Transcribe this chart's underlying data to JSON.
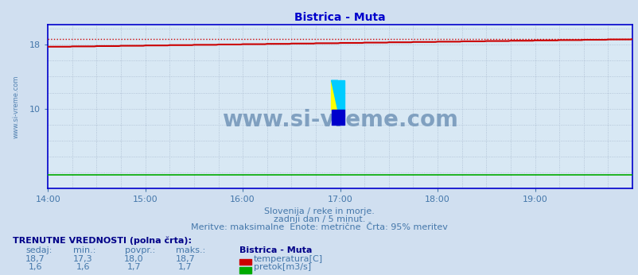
{
  "title": "Bistrica - Muta",
  "subtitle1": "Slovenija / reke in morje.",
  "subtitle2": "zadnji dan / 5 minut.",
  "subtitle3": "Meritve: maksimalne  Enote: metrične  Črta: 95% meritev",
  "watermark": "www.si-vreme.com",
  "xlabel_times": [
    "14:00",
    "15:00",
    "16:00",
    "17:00",
    "18:00",
    "19:00"
  ],
  "yticks": [
    10,
    18
  ],
  "ylim": [
    0,
    20.5
  ],
  "xlim_min": 0,
  "xlim_max": 288,
  "bg_color": "#d0dff0",
  "plot_bg_color": "#d8e8f4",
  "title_color": "#0000cc",
  "grid_color": "#aabbd0",
  "subtitle_color": "#4477aa",
  "watermark_color": "#7799bb",
  "temp_color": "#cc0000",
  "flow_color": "#00aa00",
  "dotted_line_color": "#cc0000",
  "border_color": "#0000cc",
  "table_header_color": "#000088",
  "table_data_color": "#4477aa",
  "temp_sedaj": "18,7",
  "temp_min": "17,3",
  "temp_povpr": "18,0",
  "temp_maks": "18,7",
  "flow_sedaj": "1,6",
  "flow_min": "1,6",
  "flow_povpr": "1,7",
  "flow_maks": "1,7",
  "station_name": "Bistrica - Muta",
  "legend_temp": "temperatura[C]",
  "legend_flow": "pretok[m3/s]",
  "num_points": 288,
  "temp_start": 17.75,
  "temp_end": 18.7,
  "temp_max_dotted": 18.7,
  "flow_value": 1.65,
  "time_tick_positions": [
    0,
    48,
    96,
    144,
    192,
    240,
    288
  ],
  "minor_tick_interval": 12
}
